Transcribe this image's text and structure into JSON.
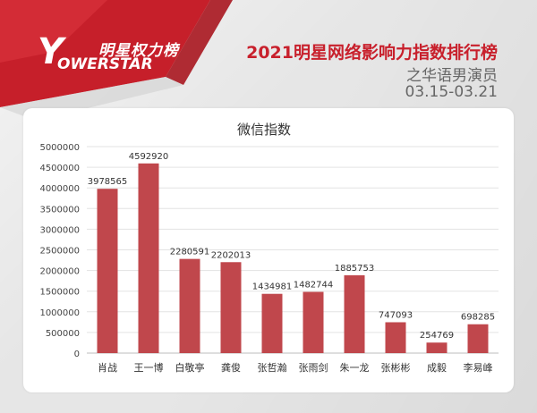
{
  "brand": {
    "logo_cn": "明星权力榜",
    "logo_y": "Y",
    "logo_en": "OWERSTAR"
  },
  "header": {
    "title": "2021明星网络影响力指数排行榜",
    "subtitle": "之华语男演员",
    "date_range": "03.15-03.21"
  },
  "colors": {
    "bar": "#c0474c",
    "banner_red": "#c61f2a",
    "title_red": "#c8202c"
  },
  "chart_data": {
    "type": "bar",
    "title": "微信指数",
    "categories": [
      "肖战",
      "王一博",
      "白敬亭",
      "龚俊",
      "张哲瀚",
      "张雨剑",
      "朱一龙",
      "张彬彬",
      "成毅",
      "李易峰"
    ],
    "values": [
      3978565,
      4592920,
      2280591,
      2202013,
      1434981,
      1482744,
      1885753,
      747093,
      254769,
      698285
    ],
    "ylim": [
      0,
      5000000
    ],
    "yticks": [
      0,
      500000,
      1000000,
      1500000,
      2000000,
      2500000,
      3000000,
      3500000,
      4000000,
      4500000,
      5000000
    ],
    "grid": true,
    "data_labels": true
  }
}
